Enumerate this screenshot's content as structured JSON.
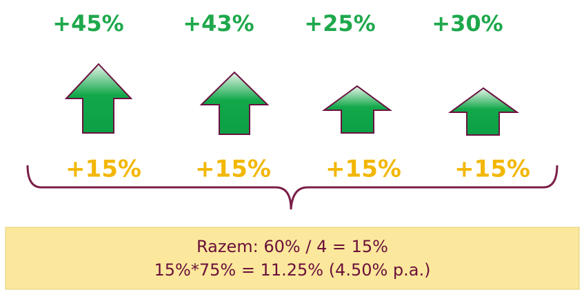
{
  "columns": [
    {
      "top": "+45%",
      "bottom": "+15%"
    },
    {
      "top": "+43%",
      "bottom": "+15%"
    },
    {
      "top": "+25%",
      "bottom": "+15%"
    },
    {
      "top": "+30%",
      "bottom": "+15%"
    }
  ],
  "summary": {
    "lines": [
      "Razem: 60% / 4 = 15%",
      "15%*75% = 11.25% (4.50% p.a.)"
    ]
  }
}
